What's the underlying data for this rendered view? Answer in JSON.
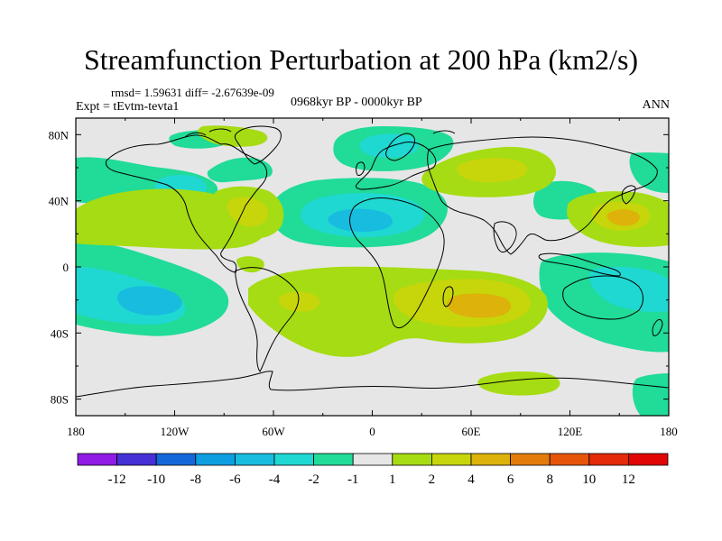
{
  "map": {
    "title": "Streamfunction Perturbation at 200 hPa (km2/s)",
    "stats": "rmsd= 1.59631 diff= -2.67639e-09",
    "left_label": "Expt = tEvtm-tevta1",
    "center_label": "0968kyr BP - 0000kyr BP",
    "right_label": "ANN",
    "projection": "cylindrical equidistant",
    "lon_ticks": [
      "180",
      "120W",
      "60W",
      "0",
      "60E",
      "120E",
      "180"
    ],
    "lat_ticks": [
      "80N",
      "40N",
      "0",
      "40S",
      "80S"
    ],
    "lon_range": [
      -180,
      180
    ],
    "lat_range": [
      -90,
      90
    ]
  },
  "colorbar": {
    "labels": [
      "-12",
      "-10",
      "-8",
      "-6",
      "-4",
      "-2",
      "-1",
      "1",
      "2",
      "4",
      "6",
      "8",
      "10",
      "12"
    ],
    "colors": [
      "#8f1de6",
      "#4631d6",
      "#1568da",
      "#0f9ee0",
      "#18bcdf",
      "#1fd8d2",
      "#21db98",
      "#e6e6e6",
      "#a6dc13",
      "#c7d50b",
      "#ddb20a",
      "#e27c0a",
      "#e5560a",
      "#e32a09",
      "#e10505"
    ]
  },
  "field": {
    "description_colors": {
      "neutral": "#e6e6e6",
      "neg1": "#21db98",
      "neg2": "#1fd8d2",
      "neg3": "#18bcdf",
      "pos1": "#a6dc13",
      "pos2": "#c7d50b",
      "pos3": "#ddb20a"
    }
  }
}
